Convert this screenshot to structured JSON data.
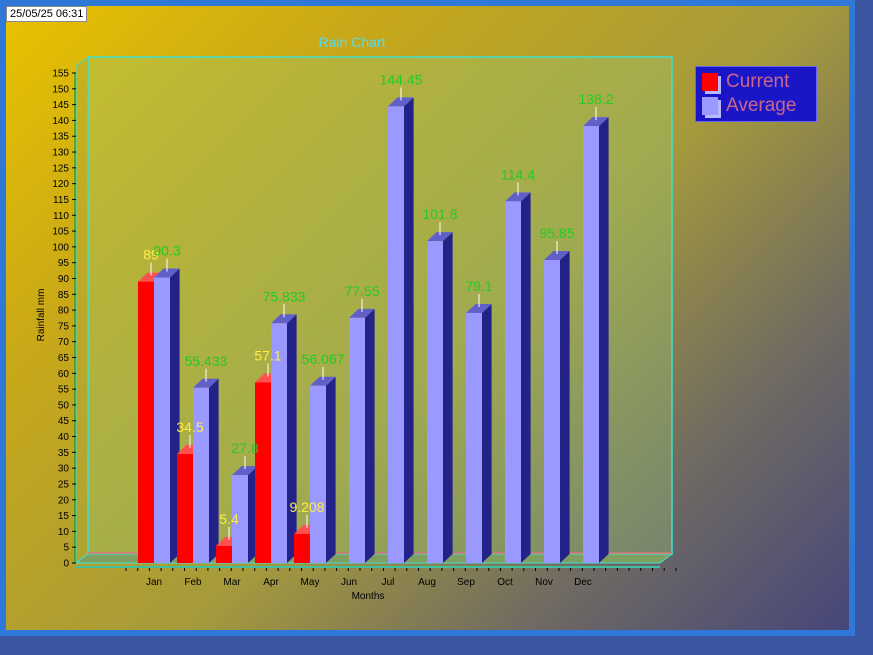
{
  "timestamp": "25/05/25 06:31",
  "chart_data": {
    "type": "bar",
    "title": "Rain Chart",
    "xlabel": "Months",
    "ylabel": "Rainfall mm",
    "ylim": [
      0,
      155
    ],
    "yticks": [
      0,
      5,
      10,
      15,
      20,
      25,
      30,
      35,
      40,
      45,
      50,
      55,
      60,
      65,
      70,
      75,
      80,
      85,
      90,
      95,
      100,
      105,
      110,
      115,
      120,
      125,
      130,
      135,
      140,
      145,
      150,
      155
    ],
    "categories": [
      "Jan",
      "Feb",
      "Mar",
      "Apr",
      "May",
      "Jun",
      "Jul",
      "Aug",
      "Sep",
      "Oct",
      "Nov",
      "Dec"
    ],
    "series": [
      {
        "name": "Current",
        "color": "#ff0000",
        "values": [
          89,
          34.5,
          5.4,
          57.1,
          9.208,
          null,
          null,
          null,
          null,
          null,
          null,
          null
        ],
        "labels": [
          "89",
          "34.5",
          "5.4",
          "57.1",
          "9.208",
          "",
          "",
          "",
          "",
          "",
          "",
          ""
        ]
      },
      {
        "name": "Average",
        "color": "#9999ff",
        "values": [
          90.3,
          55.433,
          27.8,
          75.833,
          56.067,
          77.55,
          144.45,
          101.8,
          79.1,
          114.4,
          95.85,
          138.2
        ],
        "labels": [
          "90.3",
          "55.433",
          "27.8",
          "75.833",
          "56.067",
          "77.55",
          "144.45",
          "101.8",
          "79.1",
          "114.4",
          "95.85",
          "138.2"
        ]
      }
    ],
    "legend_position": "top-right",
    "grid": false
  }
}
